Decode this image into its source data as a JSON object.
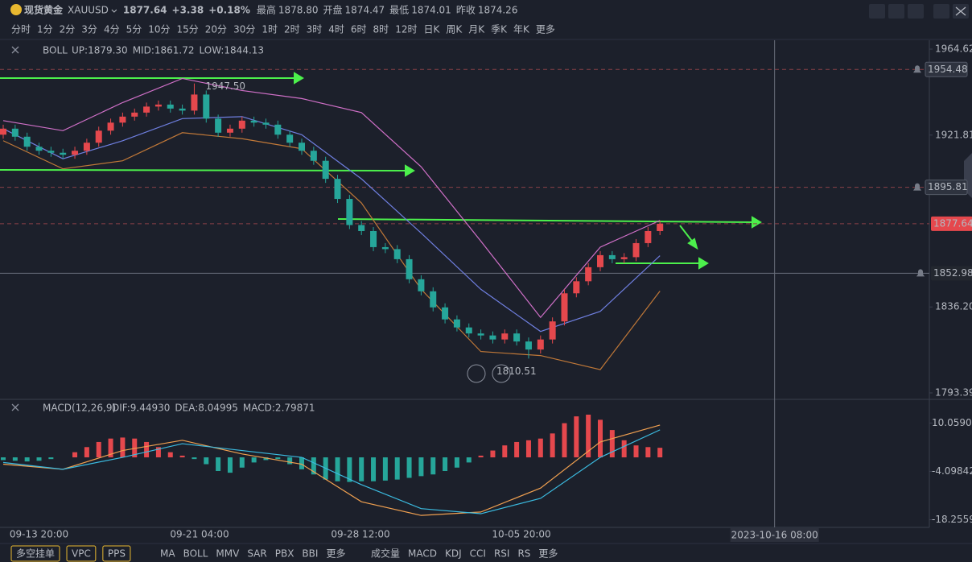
{
  "header": {
    "name": "现货黄金",
    "symbol": "XAUUSD",
    "price": "1877.64",
    "change": "+3.38",
    "change_pct": "+0.18%",
    "stats": [
      {
        "label": "最高",
        "value": "1878.80",
        "color": "#e5484d"
      },
      {
        "label": "开盘",
        "value": "1874.47",
        "color": "#e5484d"
      },
      {
        "label": "最低",
        "value": "1874.01",
        "color": "#26a69a"
      },
      {
        "label": "昨收",
        "value": "1874.26",
        "color": "#b4b8c0"
      }
    ]
  },
  "timeframes": [
    "分时",
    "1分",
    "2分",
    "3分",
    "4分",
    "5分",
    "10分",
    "15分",
    "20分",
    "30分",
    "1时",
    "2时",
    "3时",
    "4时",
    "6时",
    "8时",
    "12时",
    "日K",
    "周K",
    "月K",
    "季K",
    "年K",
    "更多"
  ],
  "active_timeframe": "4时",
  "chart_data": [
    {
      "type": "candlestick",
      "indicator": "BOLL",
      "indicator_labels": [
        "UP:1879.30",
        "MID:1861.72",
        "LOW:1844.13"
      ],
      "up_color": "#e5484d",
      "down_color": "#26a69a",
      "open": [
        1922,
        1925,
        1921,
        1916,
        1914,
        1913,
        1912,
        1914,
        1918,
        1924,
        1928,
        1931,
        1933,
        1936,
        1937,
        1935,
        1934,
        1942,
        1930,
        1923,
        1925,
        1929,
        1928,
        1927,
        1922,
        1918,
        1914,
        1909,
        1900,
        1890,
        1877,
        1874,
        1866,
        1865,
        1860,
        1850,
        1844,
        1836,
        1830,
        1826,
        1823,
        1822,
        1820,
        1823,
        1819,
        1815,
        1820,
        1829,
        1843,
        1849,
        1856,
        1862,
        1860,
        1861,
        1868,
        1874
      ],
      "high": [
        1927,
        1927,
        1923,
        1918,
        1916,
        1915,
        1916,
        1920,
        1926,
        1930,
        1933,
        1935,
        1938,
        1939,
        1939,
        1937,
        1947.5,
        1944,
        1932,
        1927,
        1931,
        1931,
        1930,
        1929,
        1924,
        1920,
        1916,
        1911,
        1902,
        1892,
        1879,
        1876,
        1868,
        1867,
        1862,
        1852,
        1846,
        1838,
        1832,
        1828,
        1825,
        1824,
        1825,
        1825,
        1821,
        1822,
        1831,
        1845,
        1851,
        1858,
        1864,
        1864,
        1863,
        1870,
        1876,
        1878.8
      ],
      "low": [
        1920,
        1919,
        1914,
        1912,
        1911,
        1910,
        1910,
        1912,
        1916,
        1922,
        1926,
        1929,
        1931,
        1934,
        1933,
        1932,
        1932,
        1928,
        1921,
        1921,
        1923,
        1926,
        1925,
        1920,
        1916,
        1912,
        1907,
        1898,
        1888,
        1875,
        1872,
        1864,
        1863,
        1858,
        1848,
        1842,
        1834,
        1828,
        1824,
        1821,
        1820,
        1818,
        1818,
        1817,
        1810.51,
        1813,
        1818,
        1827,
        1841,
        1847,
        1854,
        1858,
        1858,
        1859,
        1866,
        1872
      ],
      "close": [
        1925,
        1921,
        1916,
        1914,
        1913,
        1912,
        1914,
        1918,
        1924,
        1928,
        1931,
        1933,
        1936,
        1937,
        1935,
        1934,
        1942,
        1930,
        1923,
        1925,
        1929,
        1928,
        1927,
        1922,
        1918,
        1914,
        1909,
        1900,
        1890,
        1877,
        1874,
        1866,
        1865,
        1860,
        1850,
        1844,
        1836,
        1830,
        1826,
        1823,
        1822,
        1820,
        1823,
        1819,
        1815,
        1820,
        1829,
        1843,
        1849,
        1856,
        1862,
        1860,
        1861,
        1868,
        1874,
        1877.64
      ],
      "overlays": {
        "x": [
          0,
          5,
          10,
          15,
          20,
          25,
          30,
          35,
          40,
          45,
          50,
          55
        ],
        "series": [
          {
            "color": "#d070c8",
            "values": [
              1929,
              1924,
              1938,
              1950,
              1944,
              1940,
              1933,
              1906,
              1869,
              1831,
              1866,
              1879.3
            ]
          },
          {
            "color": "#6f7fe0",
            "values": [
              1925,
              1910,
              1919,
              1930,
              1931,
              1922,
              1900,
              1873,
              1845,
              1824,
              1834,
              1861.72
            ]
          },
          {
            "color": "#c07838",
            "values": [
              1919,
              1905,
              1909,
              1923,
              1920,
              1915,
              1888,
              1845,
              1814,
              1812,
              1805,
              1844.13
            ]
          }
        ]
      },
      "ylim": [
        1793.39,
        1964.62
      ],
      "yticks": [
        1964.62,
        1921.81,
        {
          "value": 1836.2,
          "label": "1836.20"
        },
        1793.39
      ],
      "price_lines": [
        {
          "value": 1954.48,
          "style": "alert"
        },
        {
          "value": 1895.81,
          "style": "alert"
        },
        {
          "value": 1877.64,
          "style": "last"
        },
        {
          "value": 1852.98,
          "style": "crosshair"
        }
      ],
      "annotations": [
        {
          "index": 16,
          "text": "1947.50"
        },
        {
          "index": 44,
          "text": "1810.51"
        }
      ],
      "xticks": [
        {
          "value": 3,
          "label": "09-13 20:00"
        },
        {
          "value": 16.44,
          "label": "09-21 04:00"
        },
        {
          "value": 29.92,
          "label": "09-28 12:00"
        },
        {
          "value": 43.4,
          "label": "10-05 20:00"
        }
      ],
      "crosshair": {
        "x": 64.6,
        "label": "2023-10-16 08:00"
      }
    },
    {
      "type": "macd",
      "title": "MACD(12,26,9)",
      "labels": [
        "DIF:9.44930",
        "DEA:8.04995",
        "MACD:2.79871"
      ],
      "label_colors": [
        "#f0a050",
        "#3bbbe0",
        "#c080e0"
      ],
      "histogram": [
        -0.8,
        -1,
        -1.2,
        -1,
        -0.5,
        0,
        1.5,
        3,
        4.5,
        5.5,
        5.8,
        5.5,
        4.5,
        3,
        1.5,
        0.5,
        -0.5,
        -2,
        -4,
        -4.5,
        -3,
        -1.5,
        -0.8,
        -0.5,
        -2,
        -3.5,
        -5,
        -6.5,
        -7,
        -7.2,
        -7,
        -7,
        -6.8,
        -6.5,
        -6,
        -5.5,
        -5,
        -4,
        -3,
        -1.5,
        0.5,
        2,
        3.5,
        4.5,
        5,
        5.5,
        7,
        10,
        12,
        12.5,
        11,
        8,
        5,
        3.5,
        3,
        2.79871
      ],
      "lines": {
        "x": [
          0,
          5,
          10,
          15,
          20,
          25,
          30,
          35,
          40,
          45,
          50,
          55
        ],
        "series": [
          {
            "color": "#f0a050",
            "values": [
              -2,
              -3.5,
              2,
              5,
              1,
              -2,
              -13,
              -17,
              -16,
              -9,
              4.5,
              9.4493
            ]
          },
          {
            "color": "#3bbbe0",
            "values": [
              -1.5,
              -3.5,
              0,
              4,
              2,
              0,
              -8,
              -15,
              -16.5,
              -12,
              0,
              8.04995
            ]
          }
        ]
      },
      "ylim": [
        -20.5,
        12.5
      ],
      "yticks": [
        10.05907,
        -4.09842,
        -18.25592
      ]
    }
  ],
  "toolbar": {
    "buttons": [
      "多空挂单",
      "VPC",
      "PPS"
    ],
    "main_indicators": [
      "MA",
      "BOLL",
      "MMV",
      "SAR",
      "PBX",
      "BBI",
      "更多"
    ],
    "sub_indicators": [
      "成交量",
      "MACD",
      "KDJ",
      "CCI",
      "RSI",
      "RS",
      "更多"
    ]
  }
}
